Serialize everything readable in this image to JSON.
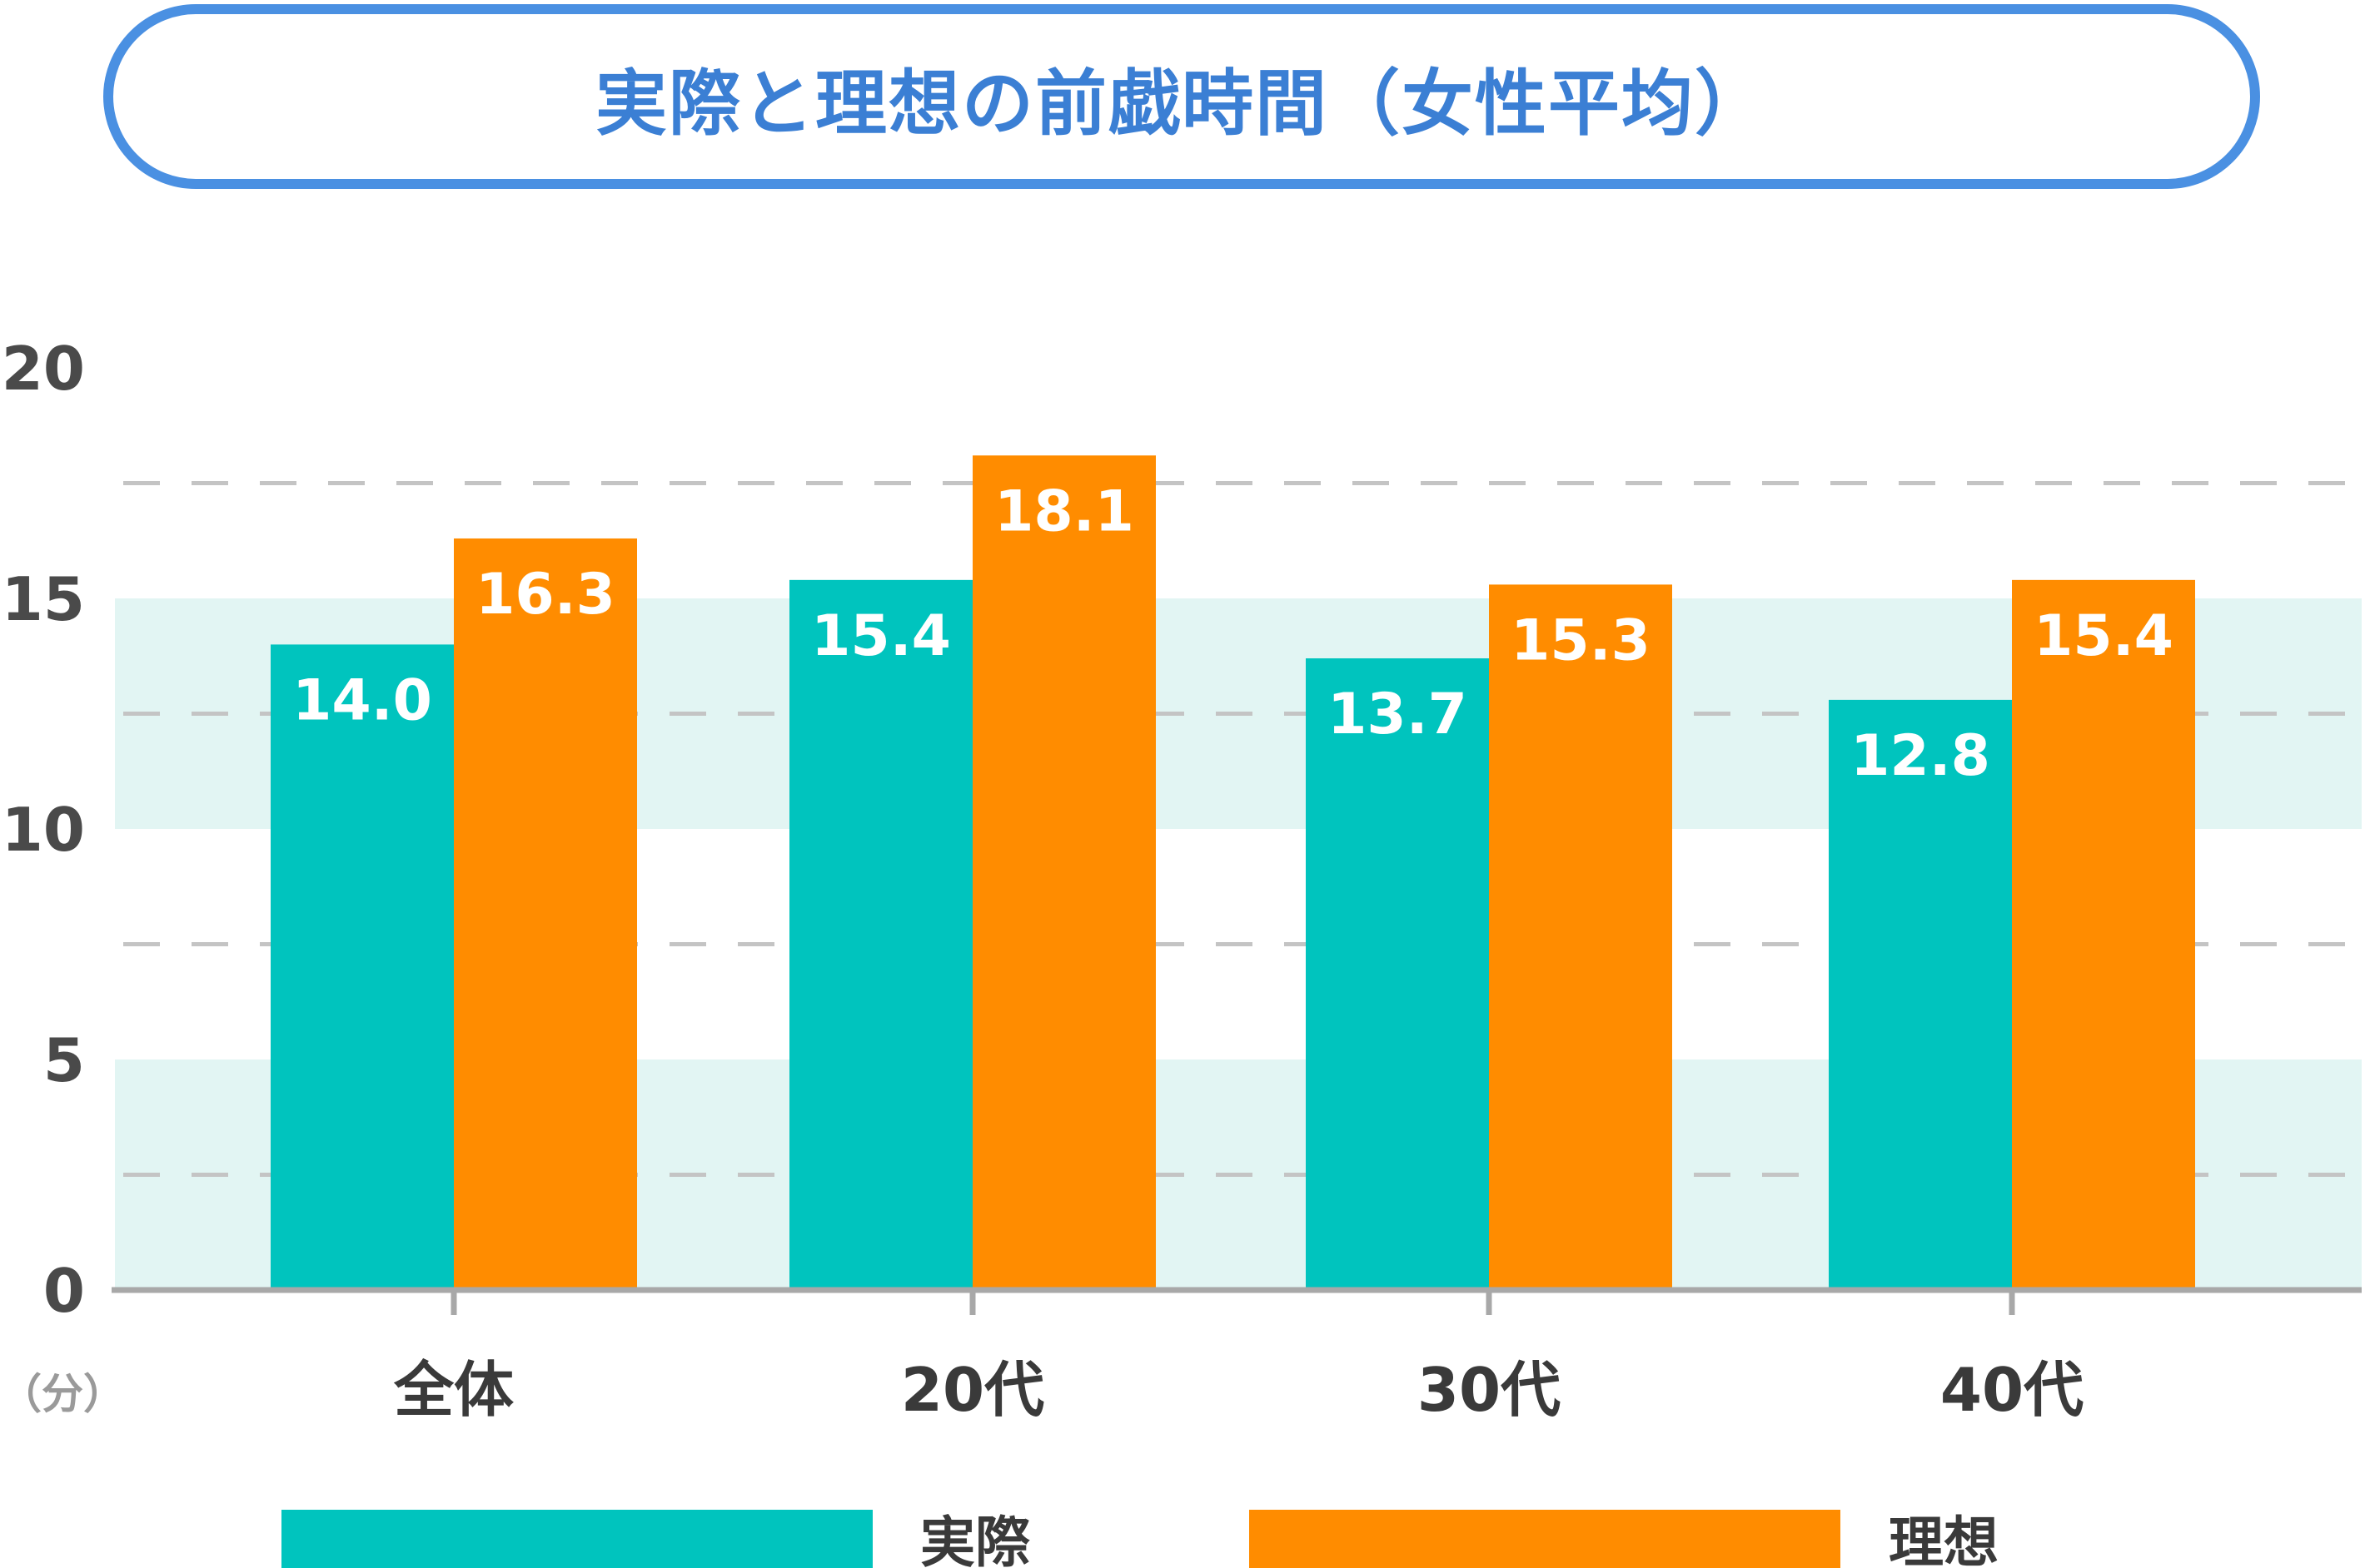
{
  "title": "実際と理想の前戯時間（女性平均）",
  "chart_data": {
    "type": "bar",
    "categories": [
      "全体",
      "20代",
      "30代",
      "40代"
    ],
    "series": [
      {
        "name": "実際",
        "color": "#00c4be",
        "values": [
          14.0,
          15.4,
          13.7,
          12.8
        ],
        "labels": [
          "14.0",
          "15.4",
          "13.7",
          "12.8"
        ]
      },
      {
        "name": "理想",
        "color": "#ff8c00",
        "values": [
          16.3,
          18.1,
          15.3,
          15.4
        ],
        "labels": [
          "16.3",
          "18.1",
          "15.3",
          "15.4"
        ]
      }
    ],
    "ylim": [
      0,
      20
    ],
    "yticks": [
      "0",
      "5",
      "10",
      "15",
      "20"
    ],
    "y_unit": "（分）",
    "band_color": "#e2f5f3",
    "legend_position": "bottom"
  }
}
